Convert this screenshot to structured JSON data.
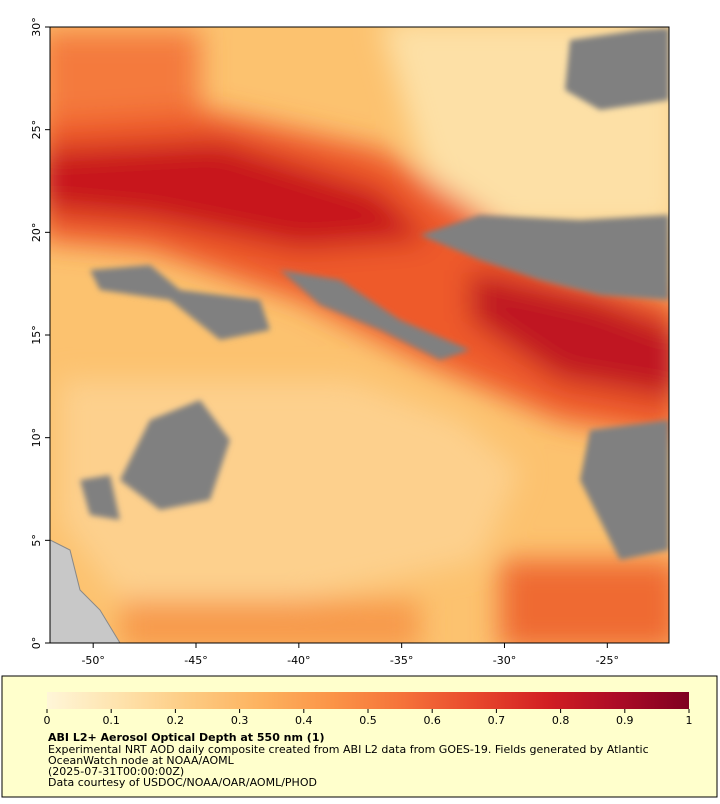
{
  "map": {
    "lonlim": [
      -52.1,
      -22
    ],
    "latlim": [
      0,
      30
    ],
    "lonticks": [
      {
        "value": -50,
        "label": "-50°"
      },
      {
        "value": -45,
        "label": "-45°"
      },
      {
        "value": -40,
        "label": "-40°"
      },
      {
        "value": -35,
        "label": "-35°"
      },
      {
        "value": -30,
        "label": "-30°"
      },
      {
        "value": -25,
        "label": "-25°"
      }
    ],
    "latticks": [
      {
        "value": 0,
        "label": "0°"
      },
      {
        "value": 5,
        "label": "5°"
      },
      {
        "value": 10,
        "label": "10°"
      },
      {
        "value": 15,
        "label": "15°"
      },
      {
        "value": 20,
        "label": "20°"
      },
      {
        "value": 25,
        "label": "25°"
      },
      {
        "value": 30,
        "label": "30°"
      }
    ]
  },
  "colorbar": {
    "range": [
      0,
      1
    ],
    "ticks": [
      0,
      0.1,
      0.2,
      0.3,
      0.4,
      0.5,
      0.6,
      0.7,
      0.8,
      0.9,
      1
    ],
    "colors": [
      "#fff6d8",
      "#fee3ad",
      "#fdcb82",
      "#fdb25f",
      "#fb9447",
      "#f5723a",
      "#e8482c",
      "#d21f23",
      "#ac0b26",
      "#7f0020"
    ]
  },
  "legend": {
    "title": "ABI L2+ Aerosol Optical Depth at 550 nm (1)",
    "lines": [
      "Experimental NRT AOD daily composite created from ABI L2 data from GOES-19. Fields generated by Atlantic",
      "OceanWatch node at NOAA/AOML",
      "(2025-07-31T00:00:00Z)",
      "Data courtesy of USDOC/NOAA/OAR/AOML/PHOD"
    ]
  }
}
